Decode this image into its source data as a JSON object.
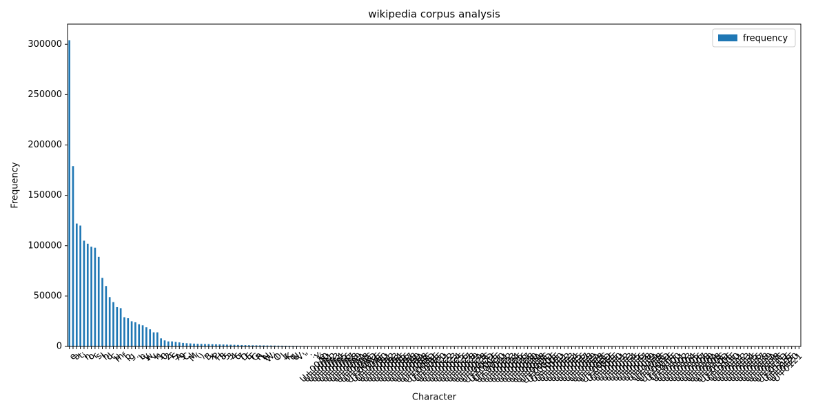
{
  "chart_data": {
    "type": "bar",
    "title": "wikipedia corpus analysis",
    "x_label": "Character",
    "y_label": "Frequency",
    "categories": [
      " ",
      "e",
      "a",
      "t",
      "i",
      "n",
      "o",
      "r",
      "s",
      "l",
      "h",
      "d",
      "c",
      "u",
      "m",
      "f",
      "p",
      "g",
      ".",
      ",",
      "b",
      "y",
      "w",
      "v",
      "k",
      "1",
      "0",
      "2",
      "T",
      "S",
      "A",
      "9",
      "C",
      "I",
      "M",
      "(",
      ")",
      "-",
      "B",
      "x",
      "P",
      "H",
      "8",
      "5",
      "3",
      "4",
      "6",
      "7",
      "D",
      "E",
      "F",
      "G",
      "R",
      "L",
      "N",
      "W",
      "j",
      "O",
      "J",
      "z",
      "K",
      "q",
      "U",
      "V",
      "'",
      "\"",
      ":",
      ";",
      "Y",
      "é",
      "U+00A0",
      "U+00A1",
      "U+00A2",
      "U+00A3",
      "U+00A4",
      "U+00A5",
      "U+00A6",
      "U+00A7",
      "U+00A8",
      "U+00A9",
      "U+00AA",
      "U+00AB",
      "U+00AC",
      "U+00AD",
      "U+00AE",
      "U+00AF",
      "U+00B0",
      "U+00B1",
      "U+00B2",
      "U+00B3",
      "U+00B4",
      "U+00B5",
      "U+00B6",
      "U+00B7",
      "U+00B8",
      "U+00B9",
      "U+00BA",
      "U+00BB",
      "U+00BC",
      "U+00BD",
      "U+00BE",
      "U+00BF",
      "U+00C0",
      "U+00C1",
      "U+00C2",
      "U+00C3",
      "U+00C4",
      "U+00C5",
      "U+00C6",
      "U+00C7",
      "U+00C8",
      "U+00C9",
      "U+00CA",
      "U+00CB",
      "U+00CC",
      "U+00CD",
      "U+00CE",
      "U+00CF",
      "U+00D0",
      "U+00D1",
      "U+00D2",
      "U+00D3",
      "U+00D4",
      "U+00D5",
      "U+00D6",
      "U+00D7",
      "U+00D8",
      "U+00D9",
      "U+00DA",
      "U+00DB",
      "U+00DC",
      "U+00DD",
      "U+00DE",
      "U+00DF",
      "U+00E0",
      "U+00E1",
      "U+00E2",
      "U+00E3",
      "U+00E4",
      "U+00E5",
      "U+00E6",
      "U+00E7",
      "U+00E8",
      "U+00E9",
      "U+00EA",
      "U+00EB",
      "U+00EC",
      "U+00ED",
      "U+00EE",
      "U+00EF",
      "U+00F0",
      "U+00F1",
      "U+00F2",
      "U+00F3",
      "U+00F4",
      "U+00F5",
      "U+00F6",
      "U+00F7",
      "U+00F8",
      "U+00F9",
      "U+00FA",
      "U+00FB",
      "U+00FC",
      "U+00FD",
      "U+00FE",
      "U+00FF",
      "U+0100",
      "U+0101",
      "U+0102",
      "U+0103",
      "U+0104",
      "U+0105",
      "U+0106",
      "U+0107",
      "U+0108",
      "U+0109",
      "U+010A",
      "U+010B",
      "U+010C",
      "U+010D",
      "U+010E",
      "U+010F",
      "U+0110",
      "U+0111",
      "U+0112",
      "U+0113",
      "U+0114",
      "U+0115",
      "U+0116",
      "U+0117",
      "U+0118",
      "U+0119",
      "U+011A",
      "U+011B",
      "U+011C",
      "U+011D",
      "U+011E",
      "U+011F",
      "U+0120",
      "U+0121"
    ],
    "series": [
      {
        "name": "frequency",
        "color": "#1f77b4",
        "values": [
          304000,
          179000,
          122000,
          120000,
          105000,
          102000,
          99000,
          98000,
          89000,
          68000,
          60000,
          49000,
          44000,
          39000,
          38000,
          29000,
          28000,
          25000,
          24000,
          22000,
          21000,
          19000,
          17000,
          14000,
          14000,
          8000,
          6000,
          5000,
          5000,
          4500,
          4000,
          3500,
          3200,
          3000,
          2800,
          2600,
          2500,
          2400,
          2300,
          2200,
          2100,
          2000,
          1900,
          1800,
          1700,
          1600,
          1500,
          1400,
          1300,
          1200,
          1150,
          1100,
          1050,
          1000,
          950,
          900,
          850,
          800,
          750,
          700,
          650,
          600,
          550,
          500,
          450,
          400,
          350,
          300,
          280,
          260,
          240,
          220,
          200,
          190,
          180,
          170,
          160,
          150,
          140,
          130,
          120,
          110,
          100,
          95,
          90,
          85,
          80,
          75,
          70,
          65,
          60,
          55,
          50,
          48,
          46,
          44,
          42,
          40,
          38,
          36,
          34,
          32,
          30,
          29,
          28,
          27,
          26,
          25,
          24,
          23,
          22,
          21,
          20,
          19,
          18,
          17,
          16,
          15,
          14,
          13,
          12,
          12,
          11,
          11,
          10,
          10,
          9,
          9,
          8,
          8,
          7,
          7,
          7,
          6,
          6,
          6,
          5,
          5,
          5,
          5,
          4,
          4,
          4,
          4,
          4,
          3,
          3,
          3,
          3,
          3,
          3,
          2,
          2,
          2,
          2,
          2,
          2,
          2,
          2,
          2,
          2,
          1,
          1,
          1,
          1,
          1,
          1,
          1,
          1,
          1,
          1,
          1,
          1,
          1,
          1,
          1,
          1,
          1,
          1,
          1,
          1,
          1,
          1,
          1,
          1,
          1,
          1,
          1,
          1,
          1,
          1,
          1,
          1,
          1,
          1,
          1,
          1,
          1,
          1,
          1
        ]
      }
    ],
    "ylim": [
      0,
      320000
    ],
    "yticks": [
      0,
      50000,
      100000,
      150000,
      200000,
      250000,
      300000
    ],
    "legend": "upper right"
  }
}
